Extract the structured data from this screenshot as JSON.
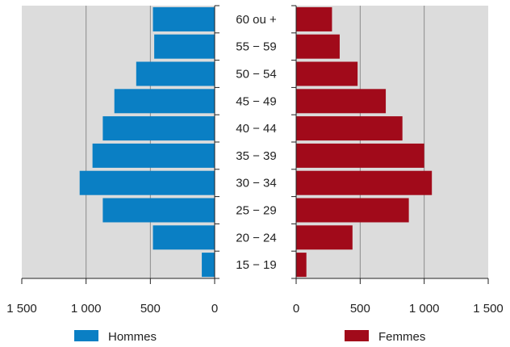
{
  "chart_data": {
    "type": "bar",
    "subtype": "population-pyramid",
    "categories": [
      "60 ou +",
      "55 − 59",
      "50 − 54",
      "45 − 49",
      "40 − 44",
      "35 − 39",
      "30 − 34",
      "25 − 29",
      "20 − 24",
      "15 − 19"
    ],
    "series": [
      {
        "name": "Hommes",
        "color": "#0a7fc4",
        "side": "left",
        "values": [
          480,
          470,
          610,
          780,
          870,
          950,
          1050,
          870,
          480,
          100
        ]
      },
      {
        "name": "Femmes",
        "color": "#a10a1a",
        "side": "right",
        "values": [
          280,
          340,
          480,
          700,
          830,
          1000,
          1060,
          880,
          440,
          80
        ]
      }
    ],
    "xlim": [
      0,
      1500
    ],
    "xticks": [
      0,
      500,
      1000,
      1500
    ],
    "xtick_labels_left": [
      "1 500",
      "1 000",
      "500",
      "0"
    ],
    "xtick_labels_right": [
      "0",
      "500",
      "1 000",
      "1 500"
    ],
    "grid": true,
    "legend_placement": "bottom"
  }
}
